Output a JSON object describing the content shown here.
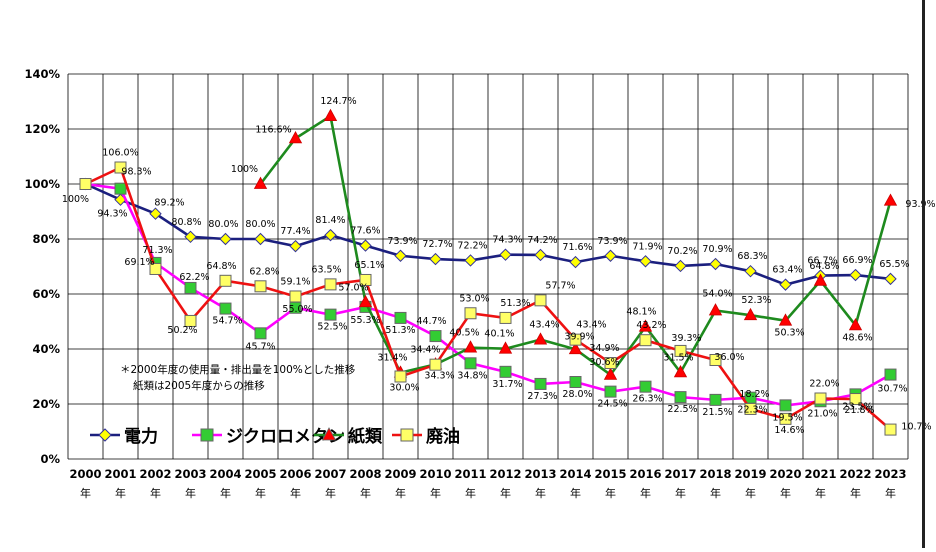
{
  "chart_data": {
    "type": "line",
    "title": "",
    "xlabel": "",
    "ylabel": "",
    "ylim": [
      0,
      140
    ],
    "y_ticks": [
      "0%",
      "20%",
      "40%",
      "60%",
      "80%",
      "100%",
      "120%",
      "140%"
    ],
    "categories": [
      "2000",
      "2001",
      "2002",
      "2003",
      "2004",
      "2005",
      "2006",
      "2007",
      "2008",
      "2009",
      "2010",
      "2011",
      "2012",
      "2013",
      "2014",
      "2015",
      "2016",
      "2017",
      "2018",
      "2019",
      "2020",
      "2021",
      "2022",
      "2023"
    ],
    "x_unit": "年",
    "grid": true,
    "note_lines": [
      "＊2000年度の使用量・排出量を100%とした推移",
      "紙類は2005年度からの推移"
    ],
    "series": [
      {
        "name": "電力",
        "color": "#1b1f7e",
        "marker_fill": "#ffff00",
        "marker": "diamond",
        "values": [
          100,
          94.3,
          89.2,
          80.8,
          80.0,
          80.0,
          77.4,
          81.4,
          77.6,
          73.9,
          72.7,
          72.2,
          74.3,
          74.2,
          71.6,
          73.9,
          71.9,
          70.2,
          70.9,
          68.3,
          63.4,
          66.7,
          66.9,
          65.5
        ],
        "labels": [
          "100%",
          "94.3%",
          "89.2%",
          "80.8%",
          "80.0%",
          "80.0%",
          "77.4%",
          "81.4%",
          "77.6%",
          "73.9%",
          "72.7%",
          "72.2%",
          "74.3%",
          "74.2%",
          "71.6%",
          "73.9%",
          "71.9%",
          "70.2%",
          "70.9%",
          "68.3%",
          "63.4%",
          "66.7%",
          "66.9%",
          "65.5%"
        ]
      },
      {
        "name": "ジクロロメタン",
        "color": "#ff00ff",
        "marker_fill": "#33cc33",
        "marker": "square",
        "values": [
          100,
          98.3,
          71.3,
          62.2,
          54.7,
          45.7,
          55.0,
          52.5,
          55.3,
          51.3,
          44.7,
          34.8,
          31.7,
          27.3,
          28.0,
          24.5,
          26.3,
          22.5,
          21.5,
          22.3,
          19.5,
          21.0,
          23.5,
          30.7
        ],
        "labels": [
          "",
          "98.3%",
          "71.3%",
          "62.2%",
          "54.7%",
          "45.7%",
          "55.0%",
          "52.5%",
          "55.3%",
          "51.3%",
          "44.7%",
          "34.8%",
          "31.7%",
          "27.3%",
          "28.0%",
          "24.5%",
          "26.3%",
          "22.5%",
          "21.5%",
          "22.3%",
          "19.5%",
          "21.0%",
          "23.5%",
          "30.7%"
        ]
      },
      {
        "name": "紙類",
        "color": "#1e8a1e",
        "marker_fill": "#ff0000",
        "marker": "triangle",
        "values": [
          null,
          null,
          null,
          null,
          null,
          100,
          116.6,
          124.7,
          57.0,
          31.4,
          34.4,
          40.5,
          40.1,
          43.4,
          39.9,
          30.6,
          48.1,
          31.5,
          54.0,
          52.3,
          50.3,
          64.8,
          48.6,
          93.9
        ],
        "labels": [
          "",
          "",
          "",
          "",
          "",
          "100%",
          "116.6%",
          "124.7%",
          "57.0%",
          "31.4%",
          "34.4%",
          "40.5%",
          "40.1%",
          "43.4%",
          "39.9%",
          "30.6%",
          "48.1%",
          "31.5%",
          "54.0%",
          "52.3%",
          "50.3%",
          "64.8%",
          "48.6%",
          "93.9%"
        ]
      },
      {
        "name": "廃油",
        "color": "#ee1111",
        "marker_fill": "#ffff66",
        "marker": "square",
        "values": [
          100,
          106.0,
          69.1,
          50.2,
          64.8,
          62.8,
          59.1,
          63.5,
          65.1,
          30.0,
          34.3,
          53.0,
          51.3,
          57.7,
          43.4,
          34.9,
          43.2,
          39.3,
          36.0,
          18.2,
          14.6,
          22.0,
          21.8,
          10.7
        ],
        "labels": [
          "",
          "106.0%",
          "69.1%",
          "50.2%",
          "64.8%",
          "62.8%",
          "59.1%",
          "63.5%",
          "65.1%",
          "30.0%",
          "34.3%",
          "53.0%",
          "51.3%",
          "57.7%",
          "43.4%",
          "34.9%",
          "43.2%",
          "39.3%",
          "36.0%",
          "18.2%",
          "14.6%",
          "22.0%",
          "21.8%",
          "10.7%"
        ]
      }
    ],
    "legend": [
      "電力",
      "ジクロロメタン",
      "紙類",
      "廃油"
    ]
  }
}
